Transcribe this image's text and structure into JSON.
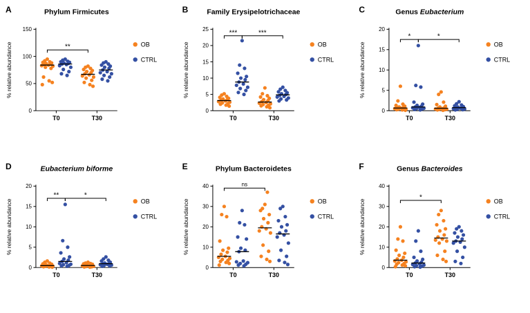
{
  "legend": {
    "ob_label": "OB",
    "ctrl_label": "CTRL"
  },
  "colors": {
    "ob": "#F58220",
    "ctrl": "#3450A3",
    "axis": "#000000",
    "median": "#000000"
  },
  "chart_data": [
    {
      "panel": "A",
      "type": "scatter",
      "title": "Phylum Firmicutes",
      "title_parts": [
        {
          "t": "Phylum Firmicutes",
          "i": false
        }
      ],
      "ylabel": "% relative abundance",
      "ylim": [
        0,
        150
      ],
      "yticks": [
        0,
        50,
        100,
        150
      ],
      "categories": [
        "T0",
        "T30"
      ],
      "series": [
        {
          "name": "OB",
          "timepoint": "T0",
          "color_key": "ob",
          "values": [
            95,
            92,
            90,
            89,
            88,
            87,
            86,
            85,
            84,
            83,
            82,
            80,
            78,
            62,
            55,
            52,
            48
          ]
        },
        {
          "name": "CTRL",
          "timepoint": "T0",
          "color_key": "ctrl",
          "values": [
            95,
            93,
            91,
            90,
            89,
            88,
            87,
            86,
            85,
            83,
            80,
            76,
            72,
            68,
            65
          ]
        },
        {
          "name": "OB",
          "timepoint": "T30",
          "color_key": "ob",
          "values": [
            82,
            80,
            78,
            76,
            74,
            72,
            70,
            68,
            66,
            64,
            62,
            60,
            56,
            52,
            48,
            45
          ]
        },
        {
          "name": "CTRL",
          "timepoint": "T30",
          "color_key": "ctrl",
          "values": [
            90,
            88,
            86,
            84,
            82,
            80,
            78,
            75,
            72,
            70,
            68,
            65,
            62,
            58,
            55
          ]
        }
      ],
      "significance": [
        {
          "from": 0,
          "to": 2,
          "label": "**",
          "y": 112
        }
      ]
    },
    {
      "panel": "B",
      "type": "scatter",
      "title": "Family Erysipelotrichaceae",
      "title_parts": [
        {
          "t": "Family Erysipelotrichaceae",
          "i": false
        }
      ],
      "ylabel": "% relative abundance",
      "ylim": [
        0,
        25
      ],
      "yticks": [
        0,
        5,
        10,
        15,
        20,
        25
      ],
      "categories": [
        "T0",
        "T30"
      ],
      "series": [
        {
          "name": "OB",
          "timepoint": "T0",
          "color_key": "ob",
          "values": [
            5.2,
            4.8,
            4.4,
            4.1,
            3.8,
            3.6,
            3.4,
            3.2,
            3.0,
            2.8,
            2.6,
            2.4,
            2.2,
            2.0,
            1.7,
            1.4
          ]
        },
        {
          "name": "CTRL",
          "timepoint": "T0",
          "color_key": "ctrl",
          "values": [
            21.5,
            14,
            13,
            11.5,
            10.5,
            10,
            9.5,
            8.8,
            8.2,
            7.8,
            7.2,
            6.8,
            6.2,
            5.6,
            5.0
          ]
        },
        {
          "name": "OB",
          "timepoint": "T30",
          "color_key": "ob",
          "values": [
            7.0,
            5.2,
            4.6,
            4.2,
            3.8,
            3.4,
            3.1,
            2.8,
            2.5,
            2.3,
            2.1,
            1.9,
            1.7,
            1.5,
            1.2,
            0.9
          ]
        },
        {
          "name": "CTRL",
          "timepoint": "T30",
          "color_key": "ctrl",
          "values": [
            7.2,
            6.6,
            6.2,
            5.8,
            5.5,
            5.2,
            5.0,
            4.7,
            4.4,
            4.2,
            3.9,
            3.6,
            3.3,
            3.0
          ]
        }
      ],
      "significance": [
        {
          "from": 0,
          "to": 1,
          "label": "***",
          "y": 23
        },
        {
          "from": 1,
          "to": 3,
          "label": "***",
          "y": 23
        }
      ]
    },
    {
      "panel": "C",
      "type": "scatter",
      "title": "Genus Eubacterium",
      "title_parts": [
        {
          "t": "Genus ",
          "i": false
        },
        {
          "t": "Eubacterium",
          "i": true
        }
      ],
      "ylabel": "% relative abundance",
      "ylim": [
        0,
        20
      ],
      "yticks": [
        0,
        5,
        10,
        15,
        20
      ],
      "categories": [
        "T0",
        "T30"
      ],
      "series": [
        {
          "name": "OB",
          "timepoint": "T0",
          "color_key": "ob",
          "values": [
            6.0,
            2.4,
            1.6,
            1.3,
            1.1,
            0.9,
            0.8,
            0.7,
            0.6,
            0.5,
            0.4,
            0.35,
            0.3,
            0.25,
            0.2,
            0.1
          ]
        },
        {
          "name": "CTRL",
          "timepoint": "T0",
          "color_key": "ctrl",
          "values": [
            16,
            6.2,
            5.8,
            2.1,
            1.6,
            1.3,
            1.1,
            0.9,
            0.8,
            0.7,
            0.6,
            0.5,
            0.4,
            0.3,
            0.2
          ]
        },
        {
          "name": "OB",
          "timepoint": "T30",
          "color_key": "ob",
          "values": [
            4.6,
            4.0,
            2.1,
            1.5,
            1.1,
            0.9,
            0.7,
            0.6,
            0.5,
            0.4,
            0.35,
            0.3,
            0.25,
            0.2,
            0.1
          ]
        },
        {
          "name": "CTRL",
          "timepoint": "T30",
          "color_key": "ctrl",
          "values": [
            2.2,
            1.7,
            1.4,
            1.2,
            1.0,
            0.9,
            0.8,
            0.7,
            0.6,
            0.5,
            0.4,
            0.3,
            0.25,
            0.2
          ]
        }
      ],
      "significance": [
        {
          "from": 0,
          "to": 1,
          "label": "*",
          "y": 17.5
        },
        {
          "from": 1,
          "to": 3,
          "label": "*",
          "y": 17.5
        }
      ]
    },
    {
      "panel": "D",
      "type": "scatter",
      "title": "Eubacterium biforme",
      "title_parts": [
        {
          "t": "Eubacterium biforme",
          "i": true
        }
      ],
      "ylabel": "% relative abundance",
      "ylim": [
        0,
        20
      ],
      "yticks": [
        0,
        5,
        10,
        15,
        20
      ],
      "categories": [
        "T0",
        "T30"
      ],
      "series": [
        {
          "name": "OB",
          "timepoint": "T0",
          "color_key": "ob",
          "values": [
            1.6,
            1.3,
            1.1,
            0.9,
            0.8,
            0.7,
            0.6,
            0.5,
            0.45,
            0.4,
            0.35,
            0.3,
            0.25,
            0.2,
            0.15,
            0.1
          ]
        },
        {
          "name": "CTRL",
          "timepoint": "T0",
          "color_key": "ctrl",
          "values": [
            15.5,
            6.6,
            5.0,
            3.6,
            2.6,
            2.1,
            1.8,
            1.5,
            1.2,
            1.0,
            0.8,
            0.7,
            0.5,
            0.4,
            0.3
          ]
        },
        {
          "name": "OB",
          "timepoint": "T30",
          "color_key": "ob",
          "values": [
            1.3,
            1.1,
            1.0,
            0.9,
            0.8,
            0.7,
            0.6,
            0.5,
            0.45,
            0.4,
            0.3,
            0.25,
            0.2,
            0.15,
            0.1
          ]
        },
        {
          "name": "CTRL",
          "timepoint": "T30",
          "color_key": "ctrl",
          "values": [
            2.6,
            2.1,
            1.8,
            1.6,
            1.3,
            1.1,
            1.0,
            0.9,
            0.8,
            0.7,
            0.6,
            0.5,
            0.4,
            0.3
          ]
        }
      ],
      "significance": [
        {
          "from": 0,
          "to": 1,
          "label": "**",
          "y": 17
        },
        {
          "from": 1,
          "to": 3,
          "label": "*",
          "y": 17
        }
      ]
    },
    {
      "panel": "E",
      "type": "scatter",
      "title": "Phylum Bacteroidetes",
      "title_parts": [
        {
          "t": "Phylum Bacteroidetes",
          "i": false
        }
      ],
      "ylabel": "% relative abundance",
      "ylim": [
        0,
        40
      ],
      "yticks": [
        0,
        10,
        20,
        30,
        40
      ],
      "categories": [
        "T0",
        "T30"
      ],
      "series": [
        {
          "name": "OB",
          "timepoint": "T0",
          "color_key": "ob",
          "values": [
            30,
            26,
            25,
            13,
            9.5,
            8.5,
            7.5,
            6.5,
            5.5,
            5.0,
            4.5,
            4.0,
            3.5,
            3.0,
            2.5,
            2.0,
            1.2
          ]
        },
        {
          "name": "CTRL",
          "timepoint": "T0",
          "color_key": "ctrl",
          "values": [
            28,
            22,
            21,
            15,
            14,
            9.5,
            8.5,
            7.8,
            3.2,
            2.8,
            2.4,
            2.0,
            1.6,
            1.2,
            0.8
          ]
        },
        {
          "name": "OB",
          "timepoint": "T30",
          "color_key": "ob",
          "values": [
            31,
            29,
            37,
            28,
            26,
            24,
            22,
            20,
            19,
            18,
            17,
            11,
            8,
            5.5,
            4,
            3
          ]
        },
        {
          "name": "CTRL",
          "timepoint": "T30",
          "color_key": "ctrl",
          "values": [
            30,
            29,
            25,
            23,
            21,
            20,
            18,
            17,
            16,
            15,
            12,
            8.5,
            5.5,
            3.5,
            2.5,
            1.5
          ]
        }
      ],
      "significance": [
        {
          "from": 0,
          "to": 2,
          "label": "ns",
          "y": 39
        }
      ]
    },
    {
      "panel": "F",
      "type": "scatter",
      "title": "Genus Bacteroides",
      "title_parts": [
        {
          "t": "Genus ",
          "i": false
        },
        {
          "t": "Bacteroides",
          "i": true
        }
      ],
      "ylabel": "% relative abundance",
      "ylim": [
        0,
        40
      ],
      "yticks": [
        0,
        10,
        20,
        30,
        40
      ],
      "categories": [
        "T0",
        "T30"
      ],
      "series": [
        {
          "name": "OB",
          "timepoint": "T0",
          "color_key": "ob",
          "values": [
            20,
            14,
            13,
            8.5,
            7,
            6,
            5,
            4.2,
            3.6,
            3.2,
            2.8,
            2.4,
            2.0,
            1.6,
            1.2,
            0.8,
            0.4
          ]
        },
        {
          "name": "CTRL",
          "timepoint": "T0",
          "color_key": "ctrl",
          "values": [
            18,
            13,
            8,
            5,
            4,
            3.2,
            2.6,
            2.2,
            1.8,
            1.5,
            1.2,
            0.9,
            0.7,
            0.4,
            0.2
          ]
        },
        {
          "name": "OB",
          "timepoint": "T30",
          "color_key": "ob",
          "values": [
            28,
            26,
            23,
            21,
            19,
            18,
            16,
            15,
            14,
            13.5,
            13,
            12,
            8,
            6,
            4,
            3
          ]
        },
        {
          "name": "CTRL",
          "timepoint": "T30",
          "color_key": "ctrl",
          "values": [
            20,
            19,
            18,
            17,
            16,
            15,
            14,
            13,
            12.5,
            12,
            10,
            8,
            5,
            3,
            2
          ]
        }
      ],
      "significance": [
        {
          "from": 0,
          "to": 2,
          "label": "*",
          "y": 33
        }
      ]
    }
  ]
}
